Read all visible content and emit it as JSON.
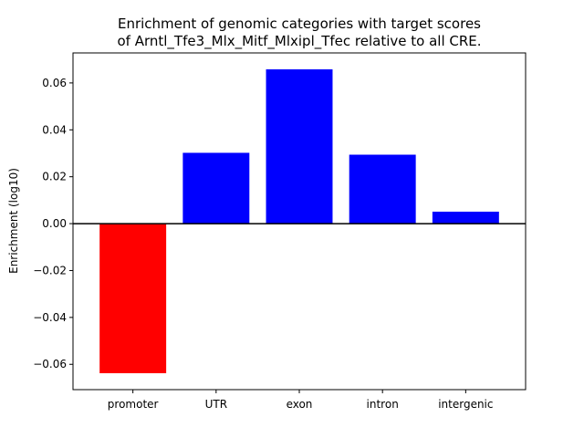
{
  "chart_data": {
    "type": "bar",
    "title_lines": [
      "Enrichment of genomic categories with target scores",
      "of Arntl_Tfe3_Mlx_Mitf_Mlxipl_Tfec relative to all CRE."
    ],
    "xlabel": "",
    "ylabel": "Enrichment (log10)",
    "categories": [
      "promoter",
      "UTR",
      "exon",
      "intron",
      "intergenic"
    ],
    "values": [
      -0.0638,
      0.0302,
      0.0658,
      0.0294,
      0.0051
    ],
    "bar_colors": [
      "#ff0000",
      "#0000ff",
      "#0000ff",
      "#0000ff",
      "#0000ff"
    ],
    "ylim": [
      -0.0708,
      0.0728
    ],
    "yticks": [
      -0.06,
      -0.04,
      -0.02,
      0.0,
      0.02,
      0.04,
      0.06
    ],
    "ytick_labels": [
      "−0.06",
      "−0.04",
      "−0.02",
      "0.00",
      "0.02",
      "0.04",
      "0.06"
    ],
    "zero_line": true,
    "grid": false,
    "legend": "none"
  }
}
